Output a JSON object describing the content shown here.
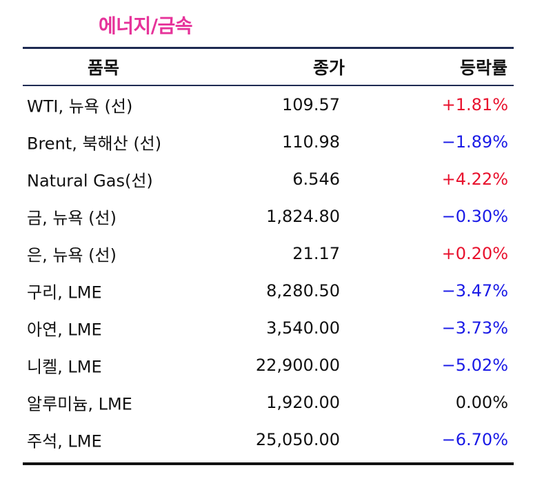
{
  "section": {
    "title": "에너지/금속"
  },
  "table": {
    "headers": {
      "item": "품목",
      "close": "종가",
      "change": "등락률"
    },
    "rows": [
      {
        "item": "WTI, 뉴욕 (선)",
        "close": "109.57",
        "change": "+1.81%",
        "direction": "up"
      },
      {
        "item": "Brent, 북해산 (선)",
        "close": "110.98",
        "change": "−1.89%",
        "direction": "down"
      },
      {
        "item": "Natural Gas(선)",
        "close": "6.546",
        "change": "+4.22%",
        "direction": "up"
      },
      {
        "item": "금, 뉴욕  (선)",
        "close": "1,824.80",
        "change": "−0.30%",
        "direction": "down"
      },
      {
        "item": "은, 뉴욕  (선)",
        "close": "21.17",
        "change": "+0.20%",
        "direction": "up"
      },
      {
        "item": "구리, LME",
        "close": "8,280.50",
        "change": "−3.47%",
        "direction": "down"
      },
      {
        "item": "아연, LME",
        "close": "3,540.00",
        "change": "−3.73%",
        "direction": "down"
      },
      {
        "item": "니켈, LME",
        "close": "22,900.00",
        "change": "−5.02%",
        "direction": "down"
      },
      {
        "item": "알루미늄, LME",
        "close": "1,920.00",
        "change": "0.00%",
        "direction": "flat"
      },
      {
        "item": "주석, LME",
        "close": "25,050.00",
        "change": "−6.70%",
        "direction": "down"
      }
    ]
  },
  "colors": {
    "title": "#e6339a",
    "rule": "#1d2a52",
    "up": "#e8112d",
    "down": "#1a1ae6",
    "flat": "#111111"
  }
}
